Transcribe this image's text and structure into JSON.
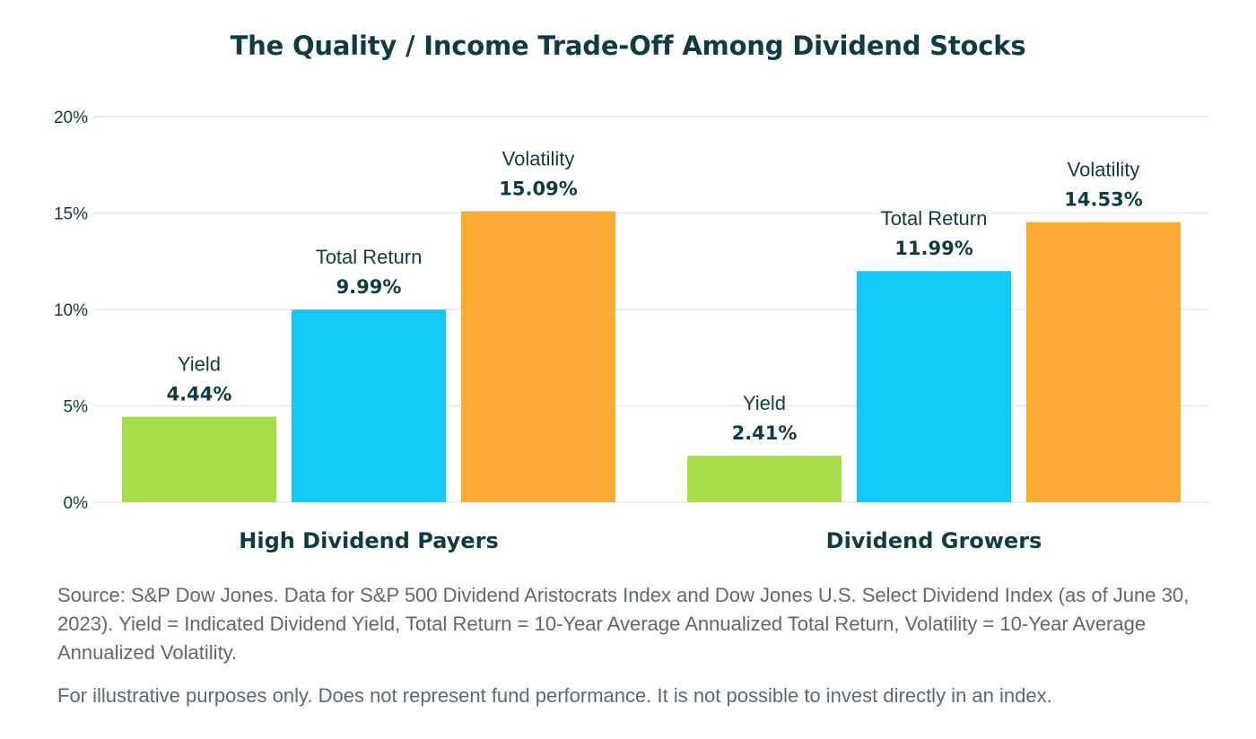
{
  "chart_data": {
    "type": "bar",
    "title": "The Quality / Income Trade-Off Among Dividend Stocks",
    "categories": [
      "High Dividend Payers",
      "Dividend Growers"
    ],
    "series": [
      {
        "name": "Yield",
        "values": [
          4.44,
          2.41
        ],
        "labels": [
          "4.44%",
          "2.41%"
        ],
        "color": "#a6dc48"
      },
      {
        "name": "Total Return",
        "values": [
          9.99,
          11.99
        ],
        "labels": [
          "9.99%",
          "11.99%"
        ],
        "color": "#12c8f7"
      },
      {
        "name": "Volatility",
        "values": [
          15.09,
          14.53
        ],
        "labels": [
          "15.09%",
          "14.53%"
        ],
        "color": "#fbac35"
      }
    ],
    "y_ticks": [
      {
        "value": 0,
        "label": "0%"
      },
      {
        "value": 5,
        "label": "5%"
      },
      {
        "value": 10,
        "label": "10%"
      },
      {
        "value": 15,
        "label": "15%"
      },
      {
        "value": 20,
        "label": "20%"
      }
    ],
    "ylim": [
      0,
      20
    ],
    "grid": true,
    "legend": "none"
  },
  "footnotes": {
    "source": "Source: S&P Dow Jones. Data for S&P 500 Dividend Aristocrats Index and Dow Jones U.S. Select Dividend Index (as of June 30, 2023). Yield = Indicated Dividend Yield, Total Return = 10-Year Average Annualized Total Return, Volatility = 10-Year Average Annualized Volatility.",
    "disclaimer": "For illustrative purposes only. Does not represent fund performance. It is not possible to invest directly in an index."
  },
  "colors": {
    "text_dark": "#0f3b45",
    "text_muted": "#5b6a6e",
    "grid": "#e6e8e8"
  }
}
